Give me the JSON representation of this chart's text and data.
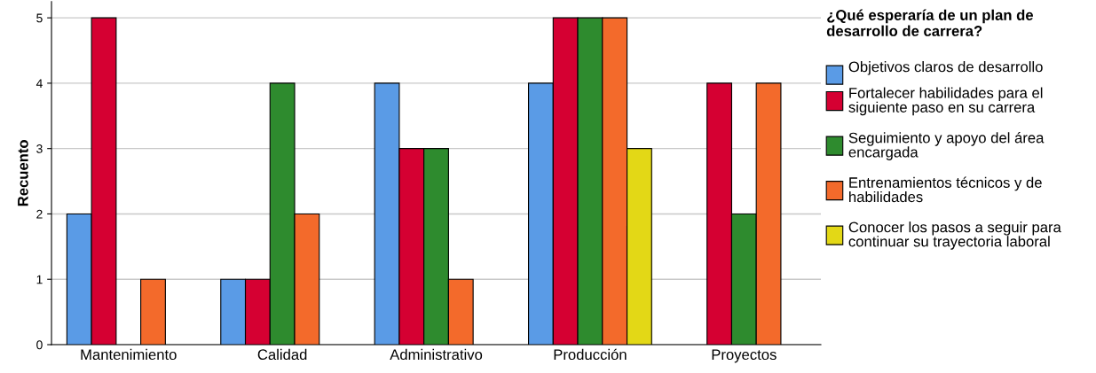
{
  "chart_data": {
    "type": "bar",
    "ylabel": "Recuento",
    "legend_title": "¿Qué esperaría de un plan de desarrollo de carrera?",
    "categories": [
      "Mantenimiento",
      "Calidad",
      "Administrativo",
      "Producción",
      "Proyectos"
    ],
    "series": [
      {
        "name": "Objetivos claros de desarrollo",
        "color": "#5a9be6",
        "values": [
          2,
          1,
          4,
          4,
          null
        ]
      },
      {
        "name": "Fortalecer habilidades para el siguiente paso en su carrera",
        "color": "#d50032",
        "values": [
          5,
          1,
          3,
          5,
          4
        ]
      },
      {
        "name": "Seguimiento y apoyo del área encargada",
        "color": "#2e8b2e",
        "values": [
          null,
          4,
          3,
          5,
          2
        ]
      },
      {
        "name": "Entrenamientos técnicos y de habilidades",
        "color": "#f36a2b",
        "values": [
          1,
          2,
          1,
          5,
          4
        ]
      },
      {
        "name": "Conocer los pasos a seguir para continuar su trayectoria laboral",
        "color": "#e3d816",
        "values": [
          null,
          null,
          null,
          3,
          null
        ]
      }
    ],
    "ylim": [
      0,
      5.25
    ],
    "yticks": [
      0,
      1,
      2,
      3,
      4,
      5
    ],
    "grid": "y",
    "legend": "right"
  }
}
